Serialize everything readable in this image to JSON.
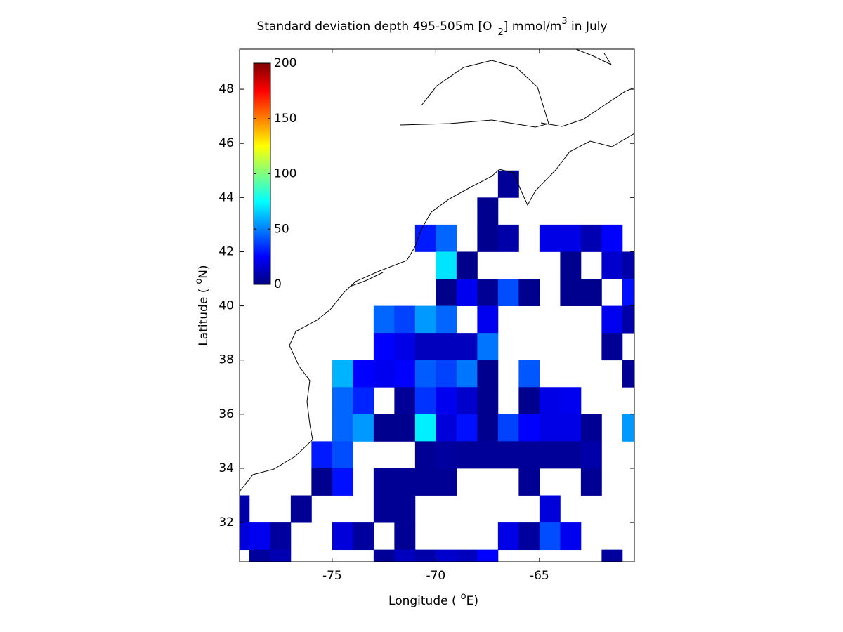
{
  "chart_data": {
    "type": "heatmap",
    "title": [
      "Standard deviation depth 495-505m [O",
      "2",
      "] mmol/m",
      "3",
      " in July"
    ],
    "x_label": [
      "Longitude (",
      "o",
      "E)"
    ],
    "y_label": [
      "Latitude (",
      "o",
      "N)"
    ],
    "x": [
      -79.5,
      -78.5,
      -77.5,
      -76.5,
      -75.5,
      -74.5,
      -73.5,
      -72.5,
      -71.5,
      -70.5,
      -69.5,
      -68.5,
      -67.5,
      -66.5,
      -65.5,
      -64.5,
      -63.5,
      -62.5,
      -61.5,
      -60.5
    ],
    "y": [
      44.5,
      43.5,
      42.5,
      41.5,
      40.5,
      39.5,
      38.5,
      37.5,
      36.5,
      35.5,
      34.5,
      33.5,
      32.5,
      31.5,
      30.5
    ],
    "values": [
      [
        null,
        null,
        null,
        null,
        null,
        null,
        null,
        null,
        null,
        null,
        null,
        null,
        null,
        5,
        null,
        null,
        null,
        null,
        null,
        null
      ],
      [
        null,
        null,
        null,
        null,
        null,
        null,
        null,
        null,
        null,
        null,
        null,
        null,
        3,
        null,
        null,
        null,
        null,
        null,
        null,
        null
      ],
      [
        null,
        null,
        null,
        null,
        null,
        null,
        null,
        null,
        null,
        30,
        45,
        null,
        3,
        8,
        null,
        20,
        20,
        10,
        25,
        null
      ],
      [
        null,
        null,
        null,
        null,
        null,
        null,
        null,
        null,
        null,
        null,
        70,
        2,
        null,
        null,
        null,
        null,
        3,
        null,
        15,
        8
      ],
      [
        null,
        null,
        null,
        null,
        null,
        null,
        null,
        null,
        null,
        null,
        2,
        22,
        4,
        40,
        3,
        null,
        3,
        3,
        null,
        28
      ],
      [
        null,
        null,
        null,
        null,
        null,
        null,
        null,
        45,
        38,
        55,
        45,
        null,
        22,
        null,
        null,
        null,
        null,
        null,
        22,
        8
      ],
      [
        null,
        null,
        null,
        null,
        null,
        null,
        null,
        25,
        20,
        12,
        12,
        12,
        48,
        null,
        null,
        null,
        null,
        null,
        4,
        null
      ],
      [
        null,
        null,
        null,
        null,
        null,
        60,
        25,
        22,
        25,
        43,
        38,
        48,
        3,
        null,
        42,
        null,
        null,
        null,
        null,
        4
      ],
      [
        null,
        null,
        null,
        null,
        null,
        45,
        32,
        null,
        5,
        35,
        22,
        15,
        3,
        null,
        3,
        20,
        22,
        null,
        null,
        null
      ],
      [
        null,
        null,
        null,
        null,
        null,
        45,
        55,
        3,
        3,
        72,
        18,
        28,
        3,
        38,
        25,
        20,
        20,
        4,
        null,
        55
      ],
      [
        null,
        null,
        null,
        null,
        30,
        40,
        null,
        null,
        null,
        4,
        6,
        5,
        5,
        5,
        5,
        5,
        5,
        8,
        null,
        null
      ],
      [
        null,
        null,
        null,
        null,
        3,
        28,
        null,
        4,
        4,
        4,
        4,
        null,
        null,
        null,
        4,
        null,
        null,
        4,
        null,
        null
      ],
      [
        8,
        null,
        null,
        4,
        null,
        null,
        null,
        4,
        4,
        null,
        null,
        null,
        null,
        null,
        null,
        18,
        null,
        null,
        null,
        null
      ],
      [
        18,
        22,
        6,
        null,
        null,
        18,
        6,
        null,
        4,
        null,
        null,
        null,
        null,
        20,
        6,
        40,
        22,
        null,
        null,
        null
      ],
      [
        null,
        6,
        10,
        null,
        null,
        null,
        null,
        5,
        12,
        8,
        15,
        12,
        25,
        null,
        null,
        null,
        null,
        null,
        6,
        null
      ]
    ],
    "colormap": "jet",
    "clim": [
      0,
      200
    ],
    "cticks": [
      0,
      50,
      100,
      150,
      200
    ],
    "xlim": [
      -79.47,
      -60.42
    ],
    "ylim": [
      30.55,
      49.48
    ],
    "xticks": [
      -75,
      -70,
      -65
    ],
    "yticks": [
      32,
      34,
      36,
      38,
      40,
      42,
      44,
      46,
      48
    ]
  }
}
